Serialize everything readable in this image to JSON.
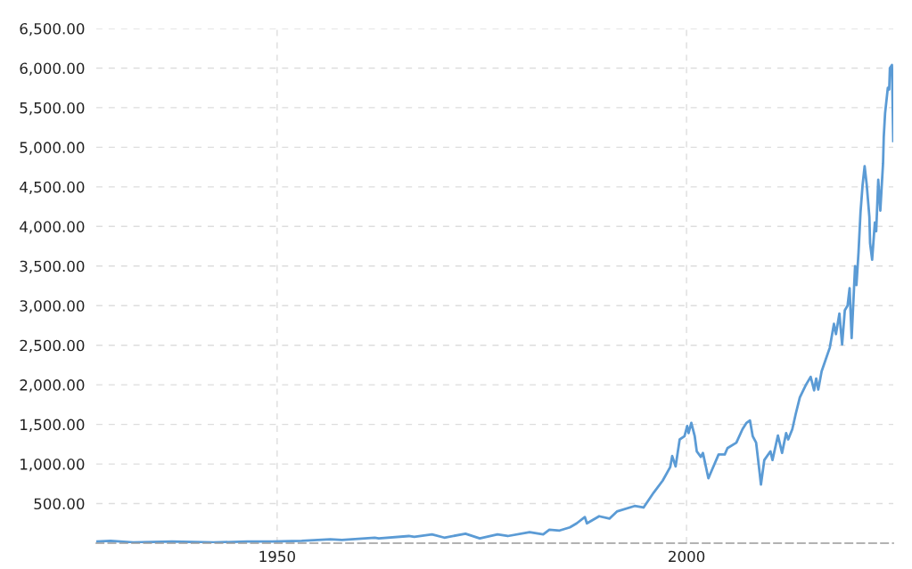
{
  "chart_data": {
    "type": "line",
    "color": "#5b9bd5",
    "x": [
      "1927-12",
      "1929-09",
      "1932-06",
      "1937-03",
      "1942-04",
      "1946-05",
      "1949-06",
      "1953-01",
      "1956-07",
      "1957-12",
      "1961-12",
      "1962-06",
      "1966-02",
      "1966-10",
      "1968-12",
      "1970-06",
      "1973-01",
      "1974-10",
      "1976-12",
      "1978-03",
      "1980-11",
      "1982-07",
      "1983-04",
      "1984-07",
      "1985-10",
      "1986-08",
      "1987-08",
      "1987-11",
      "1989-05",
      "1990-08",
      "1991-07",
      "1993-09",
      "1994-10",
      "1996-01",
      "1997-02",
      "1998-01",
      "1998-04",
      "1998-09",
      "1999-03",
      "1999-10",
      "2000-02",
      "2000-04",
      "2000-08",
      "2001-01",
      "2001-04",
      "2001-10",
      "2002-01",
      "2002-09",
      "2003-01",
      "2003-12",
      "2004-09",
      "2005-01",
      "2006-02",
      "2006-11",
      "2007-05",
      "2007-10",
      "2008-02",
      "2008-07",
      "2008-12",
      "2009-02",
      "2009-07",
      "2010-04",
      "2010-07",
      "2011-03",
      "2011-09",
      "2012-03",
      "2012-06",
      "2012-12",
      "2013-05",
      "2013-11",
      "2014-08",
      "2015-03",
      "2015-08",
      "2015-11",
      "2016-02",
      "2016-07",
      "2017-07",
      "2018-01",
      "2018-04",
      "2018-09",
      "2019-01",
      "2019-05",
      "2019-09",
      "2019-12",
      "2020-03",
      "2020-08",
      "2020-10",
      "2021-01",
      "2021-04",
      "2021-07",
      "2021-10",
      "2022-01",
      "2022-05",
      "2022-06",
      "2022-09",
      "2023-01",
      "2023-03",
      "2023-06",
      "2023-09",
      "2024-01",
      "2024-02",
      "2024-04",
      "2024-08",
      "2024-10",
      "2024-11",
      "2025-02",
      "2025-04"
    ],
    "values": [
      20,
      30,
      10,
      20,
      10,
      20,
      20,
      30,
      50,
      40,
      70,
      60,
      90,
      80,
      110,
      70,
      120,
      60,
      110,
      90,
      140,
      110,
      170,
      160,
      200,
      250,
      330,
      250,
      340,
      310,
      400,
      470,
      450,
      640,
      790,
      960,
      1100,
      970,
      1310,
      1350,
      1480,
      1390,
      1520,
      1350,
      1160,
      1090,
      1140,
      820,
      900,
      1120,
      1120,
      1200,
      1270,
      1440,
      1520,
      1550,
      1350,
      1270,
      900,
      740,
      1050,
      1160,
      1050,
      1360,
      1140,
      1390,
      1310,
      1440,
      1630,
      1840,
      2000,
      2100,
      1930,
      2080,
      1940,
      2170,
      2470,
      2770,
      2640,
      2900,
      2510,
      2940,
      3000,
      3220,
      2590,
      3500,
      3260,
      3670,
      4180,
      4520,
      4760,
      4530,
      4120,
      3790,
      3580,
      4050,
      3940,
      4590,
      4200,
      4800,
      5130,
      5430,
      5750,
      5730,
      6000,
      6040,
      5080
    ],
    "xlim": [
      "1927-12",
      "2025-04"
    ],
    "xticks": [
      "1950",
      "2000"
    ],
    "ylim": [
      0,
      6500
    ],
    "yticks": [
      {
        "value": 500,
        "label": "500.00"
      },
      {
        "value": 1000,
        "label": "1,000.00"
      },
      {
        "value": 1500,
        "label": "1,500.00"
      },
      {
        "value": 2000,
        "label": "2,000.00"
      },
      {
        "value": 2500,
        "label": "2,500.00"
      },
      {
        "value": 3000,
        "label": "3,000.00"
      },
      {
        "value": 3500,
        "label": "3,500.00"
      },
      {
        "value": 4000,
        "label": "4,000.00"
      },
      {
        "value": 4500,
        "label": "4,500.00"
      },
      {
        "value": 5000,
        "label": "5,000.00"
      },
      {
        "value": 5500,
        "label": "5,500.00"
      },
      {
        "value": 6000,
        "label": "6,000.00"
      },
      {
        "value": 6500,
        "label": "6,500.00"
      }
    ],
    "grid": true
  }
}
